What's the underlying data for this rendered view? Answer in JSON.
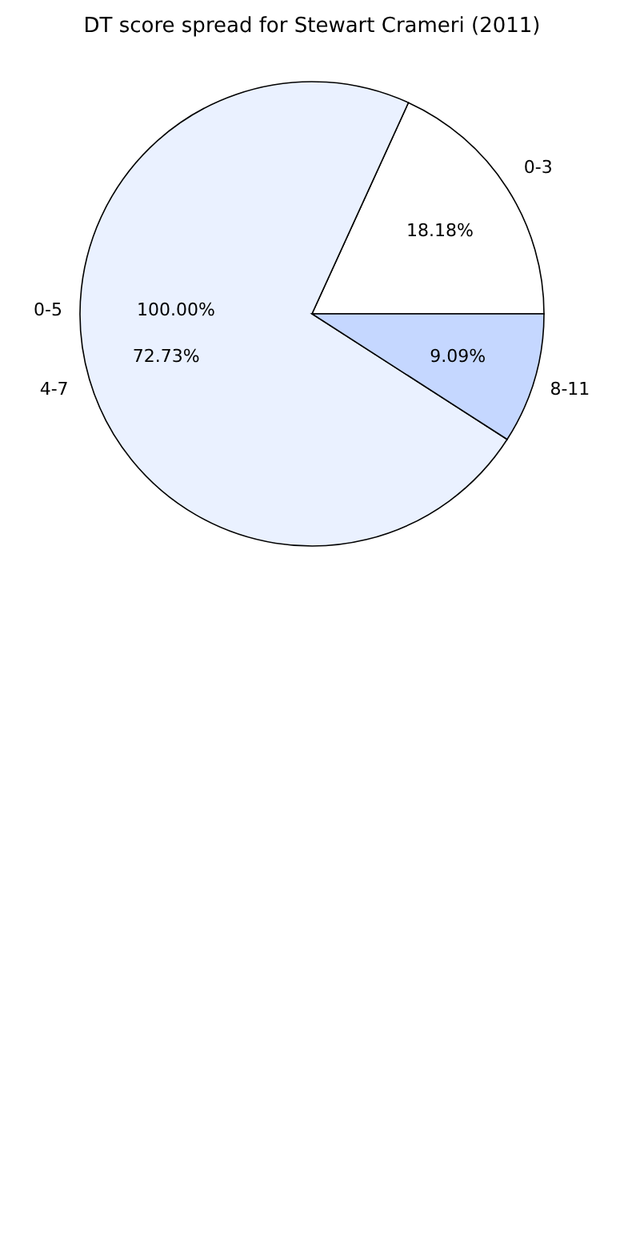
{
  "chart_data": {
    "type": "pie",
    "title": "DT score spread for Stewart Crameri (2011)",
    "categories": [
      "0-3",
      "4-7",
      "8-11"
    ],
    "values": [
      18.18,
      72.73,
      9.09
    ],
    "value_labels": [
      "18.18%",
      "72.73%",
      "9.09%"
    ],
    "colors": [
      "#ffffff",
      "#eaf1ff",
      "#c5d7ff"
    ],
    "annotations": [
      "0-5",
      "100.00%"
    ],
    "legend": false
  }
}
